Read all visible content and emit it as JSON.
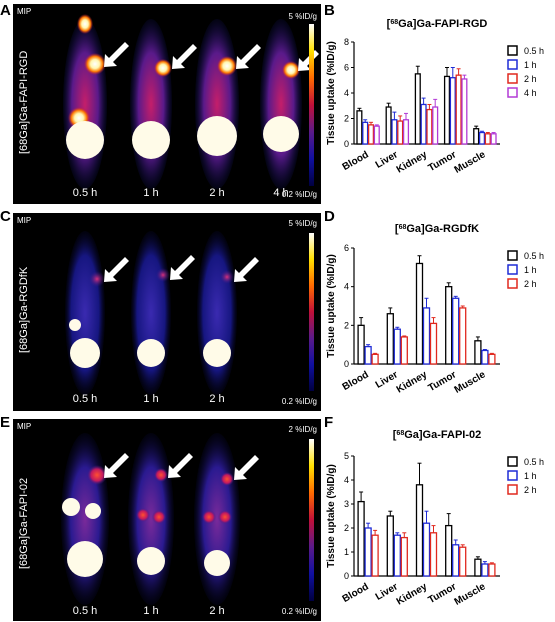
{
  "colors": {
    "s0": "#000000",
    "s1": "#1f2bd6",
    "s2": "#e0281e",
    "s3": "#b23ad6"
  },
  "rows": [
    {
      "letter_img": "A",
      "letter_chart": "B",
      "mip": "MIP",
      "tracer": "[68Ga]Ga-FAPI-RGD",
      "times": [
        "0.5 h",
        "1 h",
        "2 h",
        "4 h"
      ],
      "cmax": "5 %ID/g",
      "cmin": "0.2 %ID/g"
    },
    {
      "letter_img": "C",
      "letter_chart": "D",
      "mip": "MIP",
      "tracer": "[68Ga]Ga-RGDfK",
      "times": [
        "0.5 h",
        "1 h",
        "2 h"
      ],
      "cmax": "5 %ID/g",
      "cmin": "0.2 %ID/g"
    },
    {
      "letter_img": "E",
      "letter_chart": "F",
      "mip": "MIP",
      "tracer": "[68Ga]Ga-FAPI-02",
      "times": [
        "0.5 h",
        "1 h",
        "2 h"
      ],
      "cmax": "2 %ID/g",
      "cmin": "0.2 %ID/g"
    }
  ],
  "chart_data": [
    {
      "type": "bar",
      "title": "[68Ga]Ga-FAPI-RGD",
      "categories": [
        "Blood",
        "Liver",
        "Kidney",
        "Tumor",
        "Muscle"
      ],
      "ylabel": "Tissue uptake (%ID/g)",
      "ylim": [
        0,
        8
      ],
      "yticks": [
        0,
        2,
        4,
        6,
        8
      ],
      "legend": "right",
      "series": [
        {
          "name": "0.5 h",
          "values": [
            2.6,
            2.9,
            5.5,
            5.3,
            1.2
          ],
          "err": [
            0.2,
            0.3,
            0.6,
            0.7,
            0.2
          ]
        },
        {
          "name": "1 h",
          "values": [
            1.7,
            1.9,
            3.1,
            5.2,
            0.9
          ],
          "err": [
            0.2,
            0.6,
            0.5,
            0.8,
            0.1
          ]
        },
        {
          "name": "2 h",
          "values": [
            1.5,
            1.8,
            2.7,
            5.4,
            0.8
          ],
          "err": [
            0.2,
            0.4,
            0.4,
            0.5,
            0.1
          ]
        },
        {
          "name": "4 h",
          "values": [
            1.4,
            1.9,
            2.9,
            5.1,
            0.8
          ],
          "err": [
            0.1,
            0.5,
            0.6,
            0.3,
            0.1
          ]
        }
      ]
    },
    {
      "type": "bar",
      "title": "[68Ga]Ga-RGDfK",
      "categories": [
        "Blood",
        "Liver",
        "Kidney",
        "Tumor",
        "Muscle"
      ],
      "ylabel": "Tissue uptake (%ID/g)",
      "ylim": [
        0,
        6
      ],
      "yticks": [
        0,
        2,
        4,
        6
      ],
      "legend": "right",
      "series": [
        {
          "name": "0.5 h",
          "values": [
            2.0,
            2.6,
            5.2,
            4.0,
            1.2
          ],
          "err": [
            0.4,
            0.3,
            0.4,
            0.2,
            0.2
          ]
        },
        {
          "name": "1 h",
          "values": [
            0.9,
            1.8,
            2.9,
            3.4,
            0.7
          ],
          "err": [
            0.1,
            0.1,
            0.5,
            0.1,
            0.05
          ]
        },
        {
          "name": "2 h",
          "values": [
            0.5,
            1.4,
            2.1,
            2.9,
            0.5
          ],
          "err": [
            0.05,
            0.05,
            0.3,
            0.1,
            0.05
          ]
        }
      ]
    },
    {
      "type": "bar",
      "title": "[68Ga]Ga-FAPI-02",
      "categories": [
        "Blood",
        "Liver",
        "Kidney",
        "Tumor",
        "Muscle"
      ],
      "ylabel": "Tissue uptake (%ID/g)",
      "ylim": [
        0,
        5
      ],
      "yticks": [
        0,
        1,
        2,
        3,
        4,
        5
      ],
      "legend": "right",
      "series": [
        {
          "name": "0.5 h",
          "values": [
            3.1,
            2.5,
            3.8,
            2.1,
            0.7
          ],
          "err": [
            0.4,
            0.2,
            0.9,
            0.5,
            0.1
          ]
        },
        {
          "name": "1 h",
          "values": [
            2.0,
            1.7,
            2.2,
            1.3,
            0.5
          ],
          "err": [
            0.2,
            0.1,
            0.5,
            0.2,
            0.1
          ]
        },
        {
          "name": "2 h",
          "values": [
            1.7,
            1.6,
            1.8,
            1.2,
            0.5
          ],
          "err": [
            0.2,
            0.2,
            0.3,
            0.1,
            0.05
          ]
        }
      ]
    }
  ]
}
